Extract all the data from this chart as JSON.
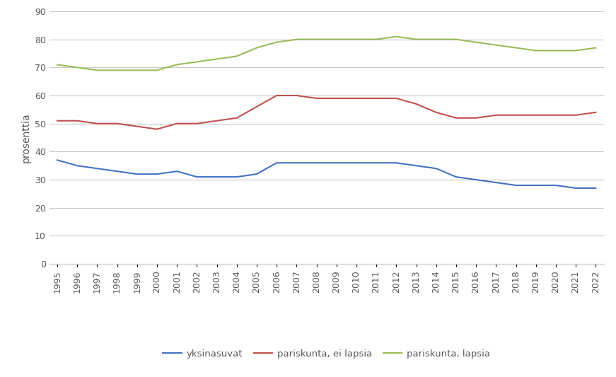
{
  "years": [
    1995,
    1996,
    1997,
    1998,
    1999,
    2000,
    2001,
    2002,
    2003,
    2004,
    2005,
    2006,
    2007,
    2008,
    2009,
    2010,
    2011,
    2012,
    2013,
    2014,
    2015,
    2016,
    2017,
    2018,
    2019,
    2020,
    2021,
    2022
  ],
  "yksinasuvat": [
    37,
    35,
    34,
    33,
    32,
    32,
    33,
    31,
    31,
    31,
    32,
    36,
    36,
    36,
    36,
    36,
    36,
    36,
    35,
    34,
    31,
    30,
    29,
    28,
    28,
    28,
    27,
    27
  ],
  "pariskunta_ei_lapsia": [
    51,
    51,
    50,
    50,
    49,
    48,
    50,
    50,
    51,
    52,
    56,
    60,
    60,
    59,
    59,
    59,
    59,
    59,
    57,
    54,
    52,
    52,
    53,
    53,
    53,
    53,
    53,
    54
  ],
  "pariskunta_lapsia": [
    71,
    70,
    69,
    69,
    69,
    69,
    71,
    72,
    73,
    74,
    77,
    79,
    80,
    80,
    80,
    80,
    80,
    81,
    80,
    80,
    80,
    79,
    78,
    77,
    76,
    76,
    76,
    77
  ],
  "color_yksinasuvat": "#4472C4",
  "color_ei_lapsia": "#C0504D",
  "color_lapsia": "#9BBB59",
  "ylabel": "prosenttia",
  "ylim": [
    0,
    90
  ],
  "yticks": [
    0,
    10,
    20,
    30,
    40,
    50,
    60,
    70,
    80,
    90
  ],
  "legend_labels": [
    "yksinasuvat",
    "pariskunta, ei lapsia",
    "pariskunta, lapsia"
  ],
  "tick_label_color": "#595959",
  "background_color": "#FFFFFF",
  "grid_color": "#C8C8C8"
}
